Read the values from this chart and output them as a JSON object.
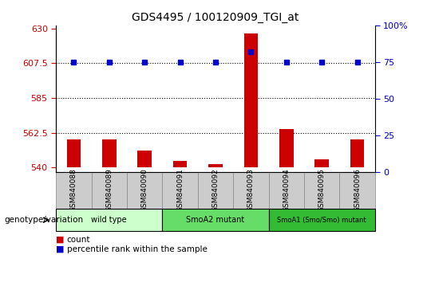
{
  "title": "GDS4495 / 100120909_TGI_at",
  "samples": [
    "GSM840088",
    "GSM840089",
    "GSM840090",
    "GSM840091",
    "GSM840092",
    "GSM840093",
    "GSM840094",
    "GSM840095",
    "GSM840096"
  ],
  "counts": [
    558,
    558,
    551,
    544,
    542,
    627,
    565,
    545,
    558
  ],
  "percentile_ranks": [
    75,
    75,
    75,
    75,
    75,
    82,
    75,
    75,
    75
  ],
  "ylim_left": [
    537,
    632
  ],
  "ylim_right": [
    0,
    100
  ],
  "yticks_left": [
    540,
    562.5,
    585,
    607.5,
    630
  ],
  "yticks_right": [
    0,
    25,
    50,
    75,
    100
  ],
  "ytick_labels_left": [
    "540",
    "562.5",
    "585",
    "607.5",
    "630"
  ],
  "ytick_labels_right": [
    "0",
    "25",
    "50",
    "75",
    "100%"
  ],
  "hlines": [
    562.5,
    585,
    607.5
  ],
  "bar_color": "#cc0000",
  "dot_color": "#0000cc",
  "bar_width": 0.4,
  "bar_bottom": 540,
  "groups": [
    {
      "label": "wild type",
      "indices": [
        0,
        1,
        2
      ],
      "color": "#ccffcc"
    },
    {
      "label": "SmoA2 mutant",
      "indices": [
        3,
        4,
        5
      ],
      "color": "#66dd66"
    },
    {
      "label": "SmoA1 (Smo/Smo) mutant",
      "indices": [
        6,
        7,
        8
      ],
      "color": "#33bb33"
    }
  ],
  "xlabel_area_label": "genotype/variation",
  "legend_count_label": "count",
  "legend_percentile_label": "percentile rank within the sample",
  "tick_label_color_left": "#cc0000",
  "tick_label_color_right": "#0000cc",
  "background_color": "#ffffff",
  "plot_bg_color": "#ffffff",
  "sample_bg_color": "#cccccc",
  "sample_border_color": "#888888"
}
